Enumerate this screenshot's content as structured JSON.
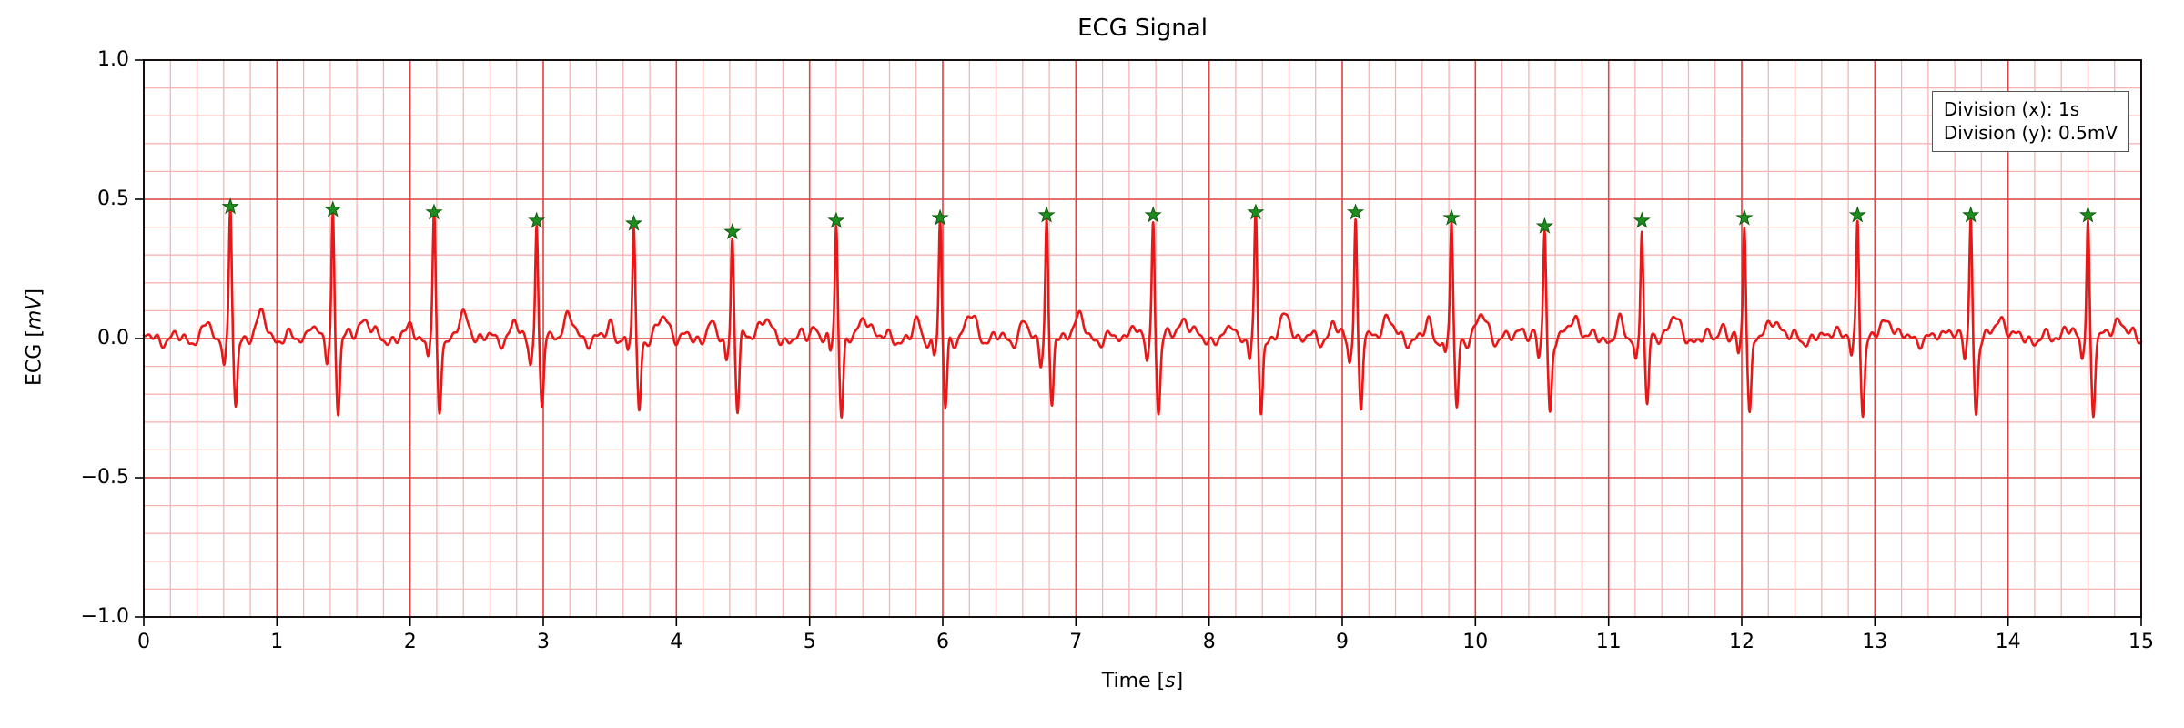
{
  "chart_data": {
    "type": "line",
    "title": "ECG Signal",
    "xlabel_pre": "Time [",
    "xlabel_math": "s",
    "xlabel_post": "]",
    "ylabel_pre": "ECG [",
    "ylabel_math": "mV",
    "ylabel_post": "]",
    "xlim": [
      0,
      15
    ],
    "ylim": [
      -1.0,
      1.0
    ],
    "x_major": 1,
    "x_minor": 0.2,
    "y_major": 0.5,
    "y_minor": 0.1,
    "grid": "on",
    "x_tick_values": [
      0,
      1,
      2,
      3,
      4,
      5,
      6,
      7,
      8,
      9,
      10,
      11,
      12,
      13,
      14,
      15
    ],
    "x_tick_labels": [
      "0",
      "1",
      "2",
      "3",
      "4",
      "5",
      "6",
      "7",
      "8",
      "9",
      "10",
      "11",
      "12",
      "13",
      "14",
      "15"
    ],
    "y_tick_values": [
      -1.0,
      -0.5,
      0.0,
      0.5,
      1.0
    ],
    "y_tick_labels": [
      "−1.0",
      "−0.5",
      "0.0",
      "0.5",
      "1.0"
    ],
    "annotation": {
      "lines": [
        "Division (x): 1s",
        "Division (y): 0.5mV"
      ]
    },
    "series": [
      {
        "name": "ecg-trace",
        "color": "#e81818"
      },
      {
        "name": "r-peak-markers",
        "color": "#1e8c1e"
      }
    ],
    "r_peaks": [
      {
        "t": 0.65,
        "amp": 0.46
      },
      {
        "t": 1.42,
        "amp": 0.45
      },
      {
        "t": 2.18,
        "amp": 0.44
      },
      {
        "t": 2.95,
        "amp": 0.41
      },
      {
        "t": 3.68,
        "amp": 0.4
      },
      {
        "t": 4.42,
        "amp": 0.37
      },
      {
        "t": 5.2,
        "amp": 0.41
      },
      {
        "t": 5.98,
        "amp": 0.42
      },
      {
        "t": 6.78,
        "amp": 0.43
      },
      {
        "t": 7.58,
        "amp": 0.43
      },
      {
        "t": 8.35,
        "amp": 0.44
      },
      {
        "t": 9.1,
        "amp": 0.44
      },
      {
        "t": 9.82,
        "amp": 0.42
      },
      {
        "t": 10.52,
        "amp": 0.39
      },
      {
        "t": 11.25,
        "amp": 0.41
      },
      {
        "t": 12.02,
        "amp": 0.42
      },
      {
        "t": 12.87,
        "amp": 0.43
      },
      {
        "t": 13.72,
        "amp": 0.43
      },
      {
        "t": 14.6,
        "amp": 0.43
      }
    ],
    "waveform": {
      "q_depth": 0.07,
      "s_depth": 0.26,
      "p_amp": 0.055,
      "t_amp": 0.075,
      "noise_amp": 0.017,
      "sample_step": 0.0025
    },
    "colors": {
      "trace": "#e81818",
      "grid_minor": "#f6b4b4",
      "grid_major": "#e04545",
      "marker_fill": "#1e8c1e",
      "marker_edge": "#0e5c0e",
      "frame": "#000000",
      "text": "#000000"
    }
  }
}
